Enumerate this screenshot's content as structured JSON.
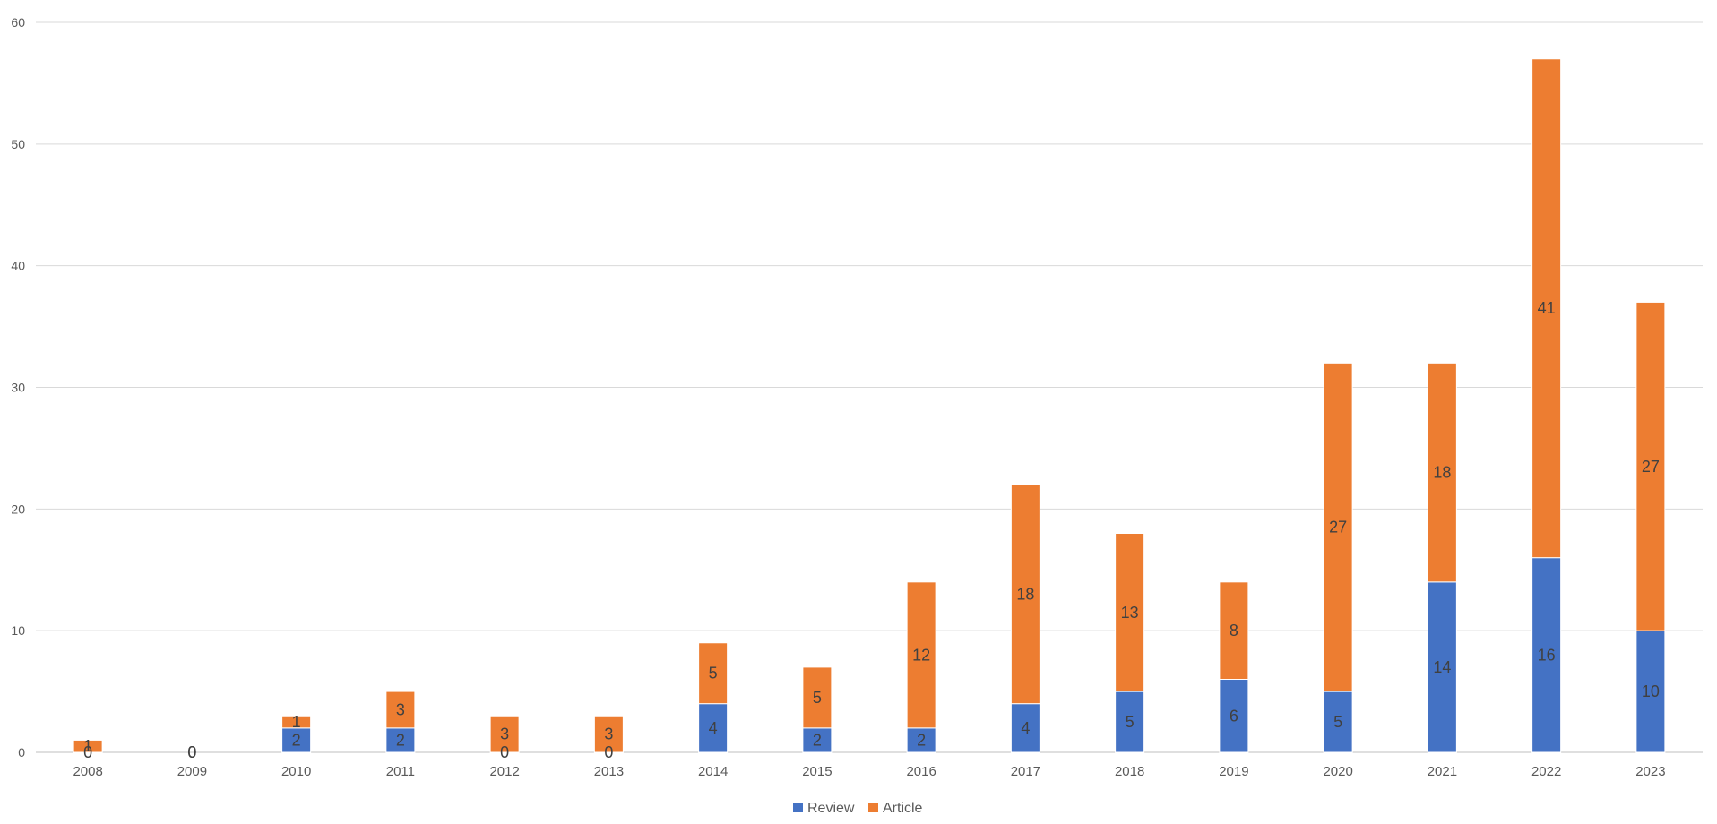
{
  "chart_data": {
    "type": "bar",
    "stacked": true,
    "categories": [
      "2008",
      "2009",
      "2010",
      "2011",
      "2012",
      "2013",
      "2014",
      "2015",
      "2016",
      "2017",
      "2018",
      "2019",
      "2020",
      "2021",
      "2022",
      "2023"
    ],
    "series": [
      {
        "name": "Review",
        "color": "#4472c4",
        "values": [
          0,
          0,
          2,
          2,
          0,
          0,
          4,
          2,
          2,
          4,
          5,
          6,
          5,
          14,
          16,
          10
        ]
      },
      {
        "name": "Article",
        "color": "#ed7d31",
        "values": [
          1,
          0,
          1,
          3,
          3,
          3,
          5,
          5,
          12,
          18,
          13,
          8,
          27,
          18,
          41,
          27
        ]
      }
    ],
    "yticks": [
      "0",
      "10",
      "20",
      "30",
      "40",
      "50",
      "60"
    ],
    "ylim": [
      0,
      60
    ],
    "grid": true,
    "legend_position": "bottom-center",
    "title": "",
    "xlabel": "",
    "ylabel": ""
  }
}
